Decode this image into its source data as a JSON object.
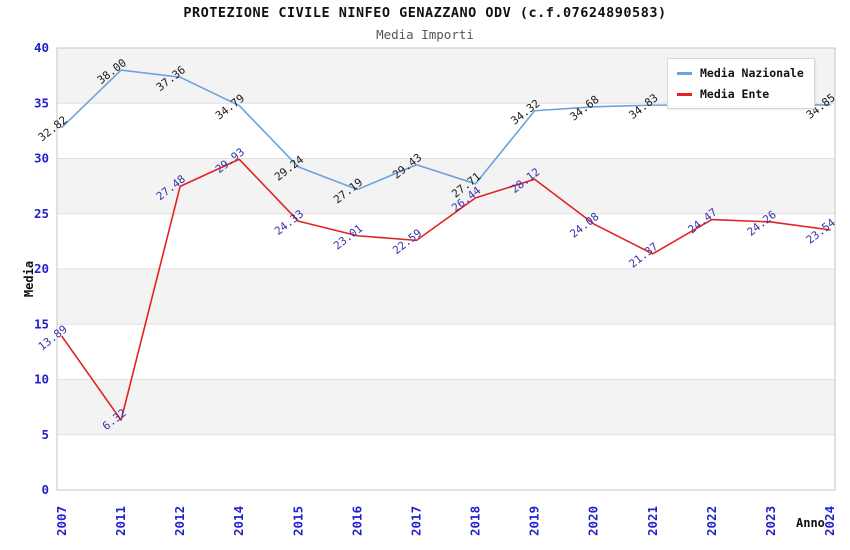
{
  "chart_data": {
    "type": "line",
    "title": "PROTEZIONE CIVILE NINFEO GENAZZANO ODV (c.f.07624890583)",
    "subtitle": "Media Importi",
    "xlabel": "Anno",
    "ylabel": "Media",
    "ylim": [
      0,
      40
    ],
    "y_ticks": [
      0,
      5,
      10,
      15,
      20,
      25,
      30,
      35,
      40
    ],
    "categories": [
      "2007",
      "2011",
      "2012",
      "2014",
      "2015",
      "2016",
      "2017",
      "2018",
      "2019",
      "2020",
      "2021",
      "2022",
      "2023",
      "2024"
    ],
    "grid": "horizontal-bands-alternating",
    "legend_position": "top-right",
    "series": [
      {
        "name": "Media Nazionale",
        "color": "#6da3dc",
        "label_color": "#1a1a1a",
        "values": [
          32.82,
          38.0,
          37.36,
          34.79,
          29.24,
          27.19,
          29.43,
          27.71,
          34.32,
          34.68,
          34.83,
          34.84,
          34.85,
          34.85
        ],
        "labels": [
          "32.82",
          "38.00",
          "37.36",
          "34.79",
          "29.24",
          "27.19",
          "29.43",
          "27.71",
          "34.32",
          "34.68",
          "34.83",
          "",
          "",
          "34.85"
        ]
      },
      {
        "name": "Media Ente",
        "color": "#e32222",
        "label_color": "#3333aa",
        "values": [
          13.89,
          6.32,
          27.48,
          29.93,
          24.33,
          23.01,
          22.59,
          26.44,
          28.12,
          24.08,
          21.37,
          24.47,
          24.26,
          23.54
        ],
        "labels": [
          "13.89",
          "6.32",
          "27.48",
          "29.93",
          "24.33",
          "23.01",
          "22.59",
          "26.44",
          "28.12",
          "24.08",
          "21.37",
          "24.47",
          "24.26",
          "23.54"
        ]
      }
    ],
    "colors": {
      "band_fill": "#f3f3f3",
      "grid_line": "#e0e0e0",
      "plot_border": "#c6c6c6",
      "tick_label": "#2222cc",
      "title": "#111111",
      "subtitle": "#555555",
      "axis_title": "#111111"
    }
  }
}
